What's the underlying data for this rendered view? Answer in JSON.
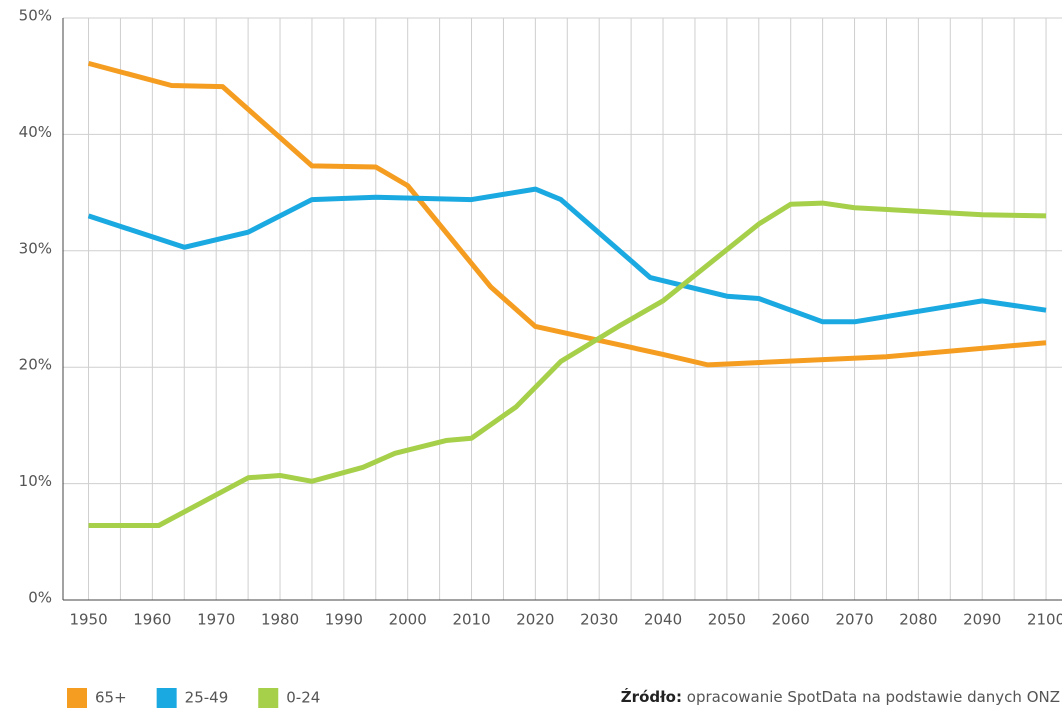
{
  "chart_data": {
    "type": "line",
    "xlim": [
      1946,
      2102.5
    ],
    "xticks": [
      1950,
      1960,
      1970,
      1980,
      1990,
      2000,
      2010,
      2020,
      2030,
      2040,
      2050,
      2060,
      2070,
      2080,
      2090,
      2100
    ],
    "xminor": [
      1955,
      1965,
      1975,
      1985,
      1995,
      2005,
      2015,
      2025,
      2035,
      2045,
      2055,
      2065,
      2075,
      2085,
      2095
    ],
    "ylim": [
      0,
      50
    ],
    "yticks": [
      {
        "value": 0,
        "label": "0%"
      },
      {
        "value": 10,
        "label": "10%"
      },
      {
        "value": 20,
        "label": "20%"
      },
      {
        "value": 30,
        "label": "30%"
      },
      {
        "value": 40,
        "label": "40%"
      },
      {
        "value": 50,
        "label": "50%"
      }
    ],
    "grid": true,
    "legend": "bottom-left",
    "series": [
      {
        "name": "65+",
        "color": "#f59d20",
        "x": [
          1950,
          1963,
          1971,
          1985,
          1995,
          2000,
          2013,
          2020,
          2030,
          2040,
          2047,
          2075,
          2100
        ],
        "values": [
          46.1,
          44.2,
          44.1,
          37.3,
          37.2,
          35.6,
          26.9,
          23.5,
          22.3,
          21.1,
          20.2,
          20.9,
          22.1
        ]
      },
      {
        "name": "25-49",
        "color": "#1ba9e1",
        "x": [
          1950,
          1965,
          1975,
          1985,
          1995,
          2010,
          2020,
          2024,
          2038,
          2050,
          2055,
          2065,
          2070,
          2090,
          2100
        ],
        "values": [
          33.0,
          30.3,
          31.6,
          34.4,
          34.6,
          34.4,
          35.3,
          34.4,
          27.7,
          26.1,
          25.9,
          23.9,
          23.9,
          25.7,
          24.9
        ]
      },
      {
        "name": "0-24",
        "color": "#a6cf4a",
        "x": [
          1950,
          1961,
          1975,
          1980,
          1985,
          1993,
          1998,
          2006,
          2010,
          2017,
          2024,
          2033,
          2040,
          2055,
          2060,
          2065,
          2070,
          2090,
          2100
        ],
        "values": [
          6.4,
          6.4,
          10.5,
          10.7,
          10.2,
          11.4,
          12.6,
          13.7,
          13.9,
          16.6,
          20.5,
          23.5,
          25.7,
          32.3,
          34.0,
          34.1,
          33.7,
          33.1,
          33.0
        ]
      }
    ],
    "source_label": "Źródło:",
    "source_text": "opracowanie SpotData na podstawie danych ONZ"
  }
}
